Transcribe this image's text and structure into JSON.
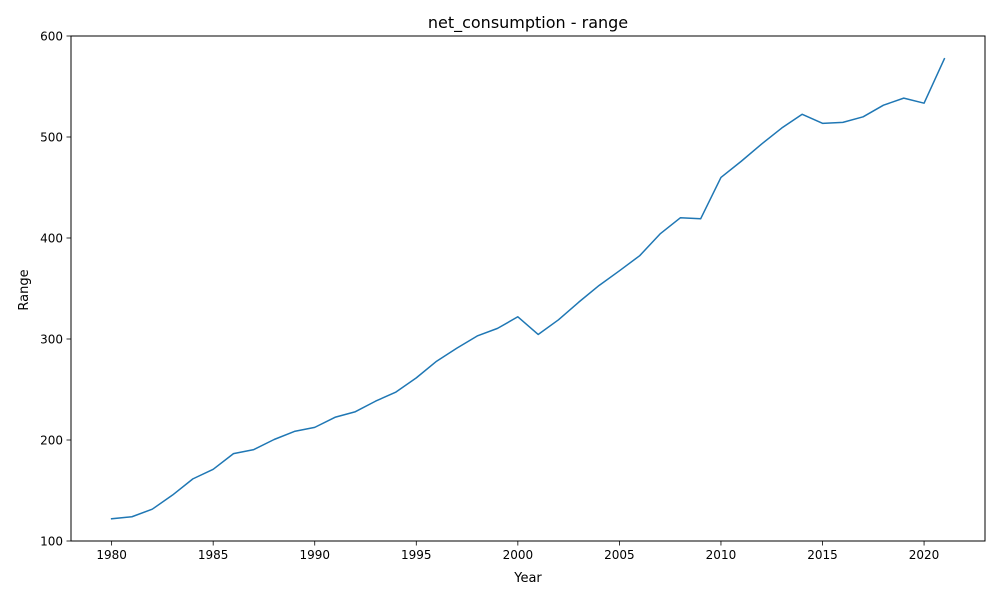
{
  "chart_data": {
    "type": "line",
    "title": "net_consumption - range",
    "xlabel": "Year",
    "ylabel": "Range",
    "xlim": [
      1978,
      2023
    ],
    "ylim": [
      100,
      600
    ],
    "xticks": [
      1980,
      1985,
      1990,
      1995,
      2000,
      2005,
      2010,
      2015,
      2020
    ],
    "yticks": [
      100,
      200,
      300,
      400,
      500,
      600
    ],
    "grid": false,
    "legend": "none",
    "line_color": "#1f77b4",
    "series": [
      {
        "x": [
          1980,
          1981,
          1982,
          1983,
          1984,
          1985,
          1986,
          1987,
          1988,
          1989,
          1990,
          1991,
          1992,
          1993,
          1994,
          1995,
          1996,
          1997,
          1998,
          1999,
          2000,
          2001,
          2002,
          2003,
          2004,
          2005,
          2006,
          2007,
          2008,
          2009,
          2010,
          2011,
          2012,
          2013,
          2014,
          2015,
          2016,
          2017,
          2018,
          2019,
          2020,
          2021
        ],
        "values": [
          122,
          124,
          131.5,
          145.5,
          161.5,
          171,
          186.5,
          190.5,
          200.5,
          208.5,
          212.5,
          222.5,
          228,
          238.5,
          247.5,
          261.5,
          278,
          291,
          303,
          310.5,
          322,
          304.5,
          319,
          336.5,
          353,
          367.5,
          382.5,
          404,
          420,
          419,
          460,
          476,
          493,
          509,
          522.5,
          513.5,
          514.5,
          520,
          531.5,
          538.5,
          533.5,
          577.5
        ]
      }
    ]
  }
}
